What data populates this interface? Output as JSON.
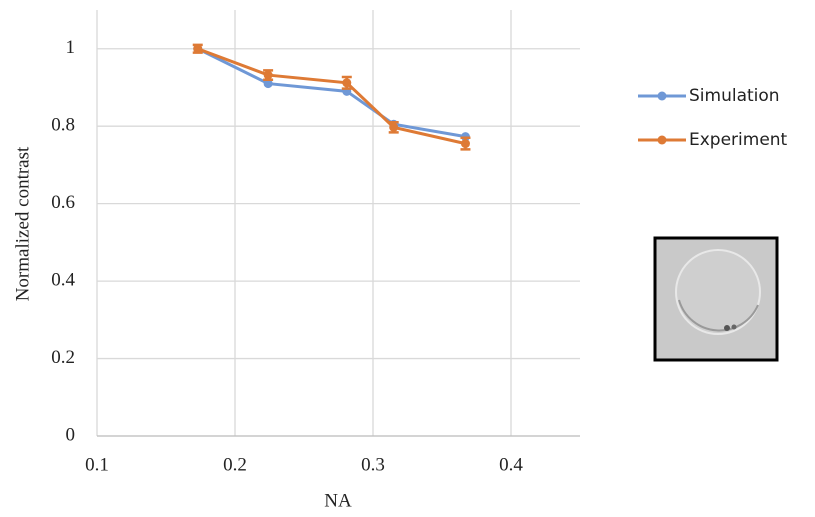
{
  "chart_data": {
    "type": "line",
    "x_label": "NA",
    "y_label": "Normalized contrast",
    "x": [
      0.173,
      0.224,
      0.281,
      0.315,
      0.367
    ],
    "series": [
      {
        "name": "Simulation",
        "color": "#6f98d6",
        "values": [
          1.0,
          0.91,
          0.89,
          0.805,
          0.773
        ]
      },
      {
        "name": "Experiment",
        "color": "#de7a35",
        "values": [
          1.0,
          0.932,
          0.912,
          0.797,
          0.755
        ],
        "errors": [
          0.01,
          0.012,
          0.015,
          0.013,
          0.015
        ]
      }
    ],
    "xlim": [
      0.1,
      0.45
    ],
    "xticks": [
      0.1,
      0.2,
      0.3,
      0.4
    ],
    "ylim": [
      0,
      1.1
    ],
    "yticks": [
      0,
      0.2,
      0.4,
      0.6,
      0.8,
      1
    ],
    "grid": true,
    "legend": "right"
  }
}
